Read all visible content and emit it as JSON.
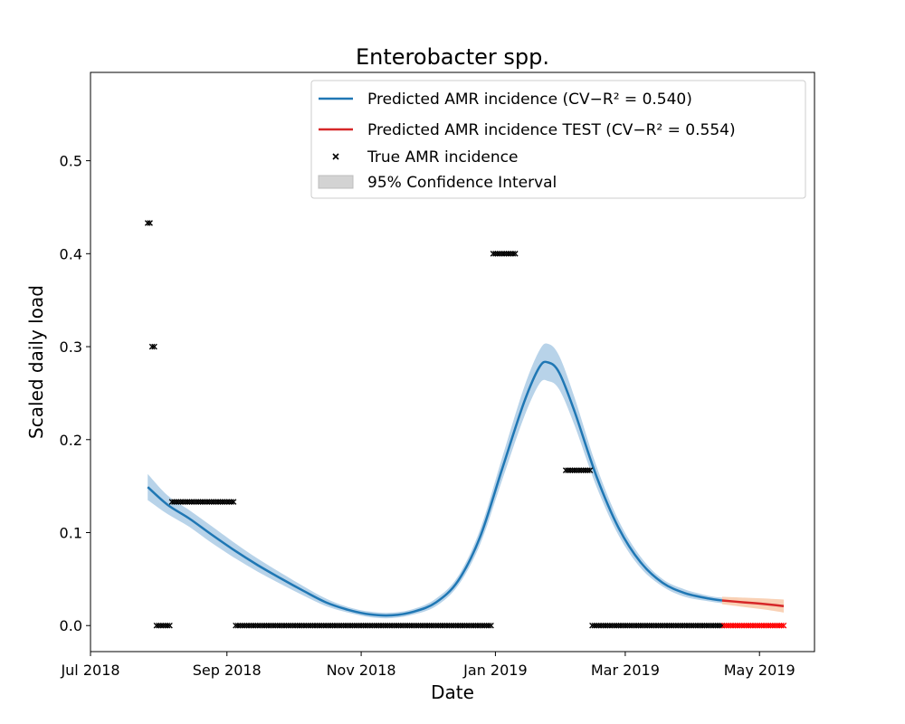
{
  "chart_data": {
    "type": "line",
    "title": "Enterobacter spp.",
    "xlabel": "Date",
    "ylabel": "Scaled daily load",
    "x_tick_labels": [
      "Jul 2018",
      "Sep 2018",
      "Nov 2018",
      "Jan 2019",
      "Mar 2019",
      "May 2019"
    ],
    "x_tick_dates": [
      "2018-07-01",
      "2018-09-01",
      "2018-11-01",
      "2019-01-01",
      "2019-03-01",
      "2019-05-01"
    ],
    "xlim": [
      "2018-07-01",
      "2019-05-26"
    ],
    "y_ticks": [
      "0.0",
      "0.1",
      "0.2",
      "0.3",
      "0.4",
      "0.5"
    ],
    "ylim": [
      -0.028,
      0.595
    ],
    "grid": false,
    "legend_position": "top-right",
    "legend": [
      {
        "label": "Predicted AMR incidence (CV−R² = 0.540)",
        "kind": "line",
        "color": "#1f77b4"
      },
      {
        "label": "Predicted AMR incidence TEST (CV−R² = 0.554)",
        "kind": "line",
        "color": "#d62728"
      },
      {
        "label": "True AMR incidence",
        "kind": "marker",
        "color": "#000000"
      },
      {
        "label": "95% Confidence Interval",
        "kind": "patch",
        "color": "#d3d3d3"
      }
    ],
    "series": [
      {
        "name": "Predicted AMR incidence",
        "color": "#1f77b4",
        "band_color": "#a6c8e4",
        "points": [
          [
            "2018-07-27",
            0.149,
            0.014
          ],
          [
            "2018-08-05",
            0.13,
            0.01
          ],
          [
            "2018-08-15",
            0.115,
            0.009
          ],
          [
            "2018-08-25",
            0.098,
            0.009
          ],
          [
            "2018-09-05",
            0.08,
            0.008
          ],
          [
            "2018-09-15",
            0.065,
            0.007
          ],
          [
            "2018-09-26",
            0.05,
            0.006
          ],
          [
            "2018-10-06",
            0.037,
            0.005
          ],
          [
            "2018-10-16",
            0.025,
            0.004
          ],
          [
            "2018-10-26",
            0.017,
            0.003
          ],
          [
            "2018-11-05",
            0.012,
            0.003
          ],
          [
            "2018-11-15",
            0.011,
            0.003
          ],
          [
            "2018-11-25",
            0.015,
            0.003
          ],
          [
            "2018-12-05",
            0.025,
            0.004
          ],
          [
            "2018-12-15",
            0.048,
            0.005
          ],
          [
            "2018-12-25",
            0.095,
            0.008
          ],
          [
            "2019-01-04",
            0.168,
            0.012
          ],
          [
            "2019-01-14",
            0.24,
            0.016
          ],
          [
            "2019-01-21",
            0.278,
            0.018
          ],
          [
            "2019-01-25",
            0.283,
            0.02
          ],
          [
            "2019-01-30",
            0.272,
            0.018
          ],
          [
            "2019-02-06",
            0.23,
            0.015
          ],
          [
            "2019-02-16",
            0.16,
            0.011
          ],
          [
            "2019-02-26",
            0.105,
            0.008
          ],
          [
            "2019-03-08",
            0.068,
            0.006
          ],
          [
            "2019-03-18",
            0.046,
            0.004
          ],
          [
            "2019-03-28",
            0.035,
            0.004
          ],
          [
            "2019-04-08",
            0.029,
            0.003
          ],
          [
            "2019-04-14",
            0.027,
            0.003
          ]
        ]
      },
      {
        "name": "Predicted AMR incidence TEST",
        "color": "#d62728",
        "band_color": "#f7c6a3",
        "points": [
          [
            "2019-04-14",
            0.027,
            0.004
          ],
          [
            "2019-04-24",
            0.025,
            0.005
          ],
          [
            "2019-05-04",
            0.023,
            0.006
          ],
          [
            "2019-05-12",
            0.021,
            0.007
          ]
        ]
      }
    ],
    "true_points": {
      "name": "True AMR incidence",
      "marker": "x",
      "segments": [
        {
          "start": "2018-07-27",
          "end": "2018-07-28",
          "value": 0.433,
          "color": "#000000"
        },
        {
          "start": "2018-07-29",
          "end": "2018-07-30",
          "value": 0.3,
          "color": "#000000"
        },
        {
          "start": "2018-07-31",
          "end": "2018-08-06",
          "value": 0.0,
          "color": "#000000"
        },
        {
          "start": "2018-08-07",
          "end": "2018-09-04",
          "value": 0.133,
          "color": "#000000"
        },
        {
          "start": "2018-09-05",
          "end": "2018-12-30",
          "value": 0.0,
          "color": "#000000"
        },
        {
          "start": "2018-12-31",
          "end": "2019-01-10",
          "value": 0.4,
          "color": "#000000"
        },
        {
          "start": "2019-02-02",
          "end": "2019-02-13",
          "value": 0.167,
          "color": "#000000"
        },
        {
          "start": "2019-02-14",
          "end": "2019-04-14",
          "value": 0.0,
          "color": "#000000"
        },
        {
          "start": "2019-04-15",
          "end": "2019-05-12",
          "value": 0.0,
          "color": "#ff0000"
        }
      ]
    }
  }
}
